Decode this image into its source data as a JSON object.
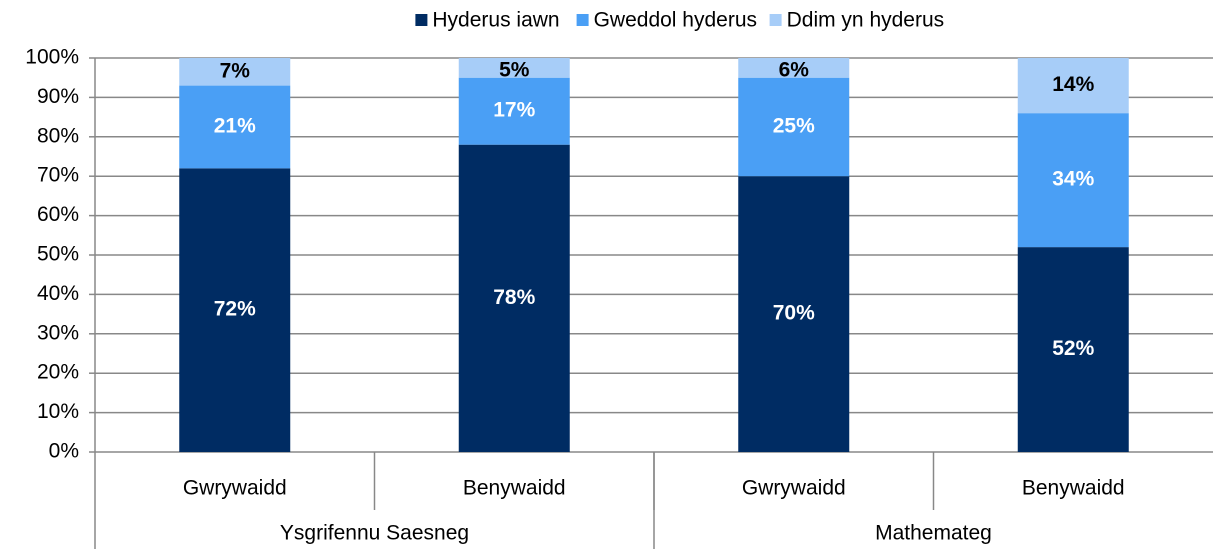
{
  "chart_data": {
    "type": "stacked_bar",
    "categories": [
      "Gwrywaidd",
      "Benywaidd",
      "Gwrywaidd",
      "Benywaidd"
    ],
    "groups": [
      {
        "name": "Ysgrifennu Saesneg",
        "span": 2
      },
      {
        "name": "Mathemateg",
        "span": 2
      }
    ],
    "series": [
      {
        "name": "Hyderus iawn",
        "color": "#002c63",
        "label_color": "#ffffff",
        "values": [
          72,
          78,
          70,
          52
        ],
        "value_labels": [
          "72%",
          "78%",
          "70%",
          "52%"
        ]
      },
      {
        "name": "Gweddol hyderus",
        "color": "#4a9ff5",
        "label_color": "#ffffff",
        "values": [
          21,
          17,
          25,
          34
        ],
        "value_labels": [
          "21%",
          "17%",
          "25%",
          "34%"
        ]
      },
      {
        "name": "Ddim yn hyderus",
        "color": "#a7cdf8",
        "label_color": "#000000",
        "values": [
          7,
          5,
          6,
          14
        ],
        "value_labels": [
          "7%",
          "5%",
          "6%",
          "14%"
        ]
      }
    ],
    "ylim": [
      0,
      100
    ],
    "yticks": [
      {
        "value": 0,
        "label": "0%"
      },
      {
        "value": 10,
        "label": "10%"
      },
      {
        "value": 20,
        "label": "20%"
      },
      {
        "value": 30,
        "label": "30%"
      },
      {
        "value": 40,
        "label": "40%"
      },
      {
        "value": 50,
        "label": "50%"
      },
      {
        "value": 60,
        "label": "60%"
      },
      {
        "value": 70,
        "label": "70%"
      },
      {
        "value": 80,
        "label": "80%"
      },
      {
        "value": 90,
        "label": "90%"
      },
      {
        "value": 100,
        "label": "100%"
      }
    ],
    "grid": true,
    "legend": "top"
  }
}
